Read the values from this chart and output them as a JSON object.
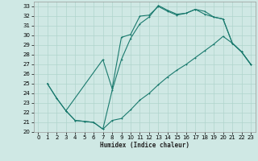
{
  "xlabel": "Humidex (Indice chaleur)",
  "background_color": "#cfe8e4",
  "grid_color": "#b0d4cc",
  "line_color": "#1a7a6e",
  "xlim": [
    -0.5,
    23.5
  ],
  "ylim": [
    20,
    33.5
  ],
  "xticks": [
    0,
    1,
    2,
    3,
    4,
    5,
    6,
    7,
    8,
    9,
    10,
    11,
    12,
    13,
    14,
    15,
    16,
    17,
    18,
    19,
    20,
    21,
    22,
    23
  ],
  "yticks": [
    20,
    21,
    22,
    23,
    24,
    25,
    26,
    27,
    28,
    29,
    30,
    31,
    32,
    33
  ],
  "line1_x": [
    1,
    2,
    3,
    4,
    5,
    6,
    7,
    8,
    9,
    10,
    11,
    12,
    13,
    14,
    15,
    16,
    17,
    18,
    19,
    20,
    21,
    22,
    23
  ],
  "line1_y": [
    25.0,
    23.5,
    22.2,
    21.2,
    21.1,
    21.0,
    20.3,
    24.3,
    27.5,
    29.7,
    31.2,
    31.9,
    33.1,
    32.6,
    32.2,
    32.3,
    32.7,
    32.5,
    31.9,
    31.7,
    29.2,
    28.3,
    27.0
  ],
  "line2_x": [
    1,
    2,
    3,
    4,
    5,
    6,
    7,
    8,
    9,
    10,
    11,
    12,
    13,
    14,
    15,
    16,
    17,
    18,
    19,
    20,
    21,
    22,
    23
  ],
  "line2_y": [
    25.0,
    23.5,
    22.2,
    21.2,
    21.1,
    21.0,
    20.3,
    21.2,
    21.4,
    22.3,
    23.3,
    24.0,
    24.9,
    25.7,
    26.4,
    27.0,
    27.7,
    28.4,
    29.1,
    29.9,
    29.2,
    28.3,
    27.0
  ],
  "line3_x": [
    3,
    7,
    8,
    9,
    10,
    11,
    12,
    13,
    14,
    15,
    16,
    17,
    18,
    19,
    20,
    21,
    22,
    23
  ],
  "line3_y": [
    22.2,
    27.5,
    24.5,
    29.8,
    30.1,
    32.0,
    32.1,
    33.0,
    32.5,
    32.1,
    32.3,
    32.7,
    32.2,
    31.9,
    31.7,
    29.2,
    28.3,
    27.0
  ]
}
